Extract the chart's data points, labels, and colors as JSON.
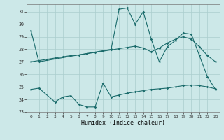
{
  "xlabel": "Humidex (Indice chaleur)",
  "background_color": "#cce8e8",
  "grid_color": "#aacece",
  "line_color": "#1a6b6b",
  "xlim": [
    -0.5,
    23.5
  ],
  "ylim": [
    23,
    31.6
  ],
  "xticks": [
    0,
    1,
    2,
    3,
    4,
    5,
    6,
    7,
    8,
    9,
    10,
    11,
    12,
    13,
    14,
    15,
    16,
    17,
    18,
    19,
    20,
    21,
    22,
    23
  ],
  "yticks": [
    23,
    24,
    25,
    26,
    27,
    28,
    29,
    30,
    31
  ],
  "line1_x": [
    0,
    1,
    10,
    11,
    12,
    13,
    14,
    15,
    16,
    17,
    18,
    19,
    20,
    21,
    22,
    23
  ],
  "line1_y": [
    29.5,
    27.0,
    28.0,
    31.2,
    31.3,
    30.0,
    31.0,
    28.8,
    27.0,
    28.2,
    28.7,
    29.3,
    29.2,
    27.5,
    25.8,
    24.8
  ],
  "line2_x": [
    0,
    1,
    3,
    4,
    5,
    6,
    7,
    8,
    9,
    10,
    11,
    12,
    13,
    14,
    15,
    16,
    17,
    18,
    19,
    20,
    21,
    22,
    23
  ],
  "line2_y": [
    24.8,
    24.9,
    23.8,
    24.2,
    24.3,
    23.6,
    23.4,
    23.4,
    25.3,
    24.2,
    24.35,
    24.5,
    24.6,
    24.7,
    24.8,
    24.85,
    24.9,
    25.0,
    25.1,
    25.15,
    25.1,
    25.0,
    24.85
  ],
  "line3_x": [
    0,
    1,
    2,
    3,
    4,
    5,
    6,
    7,
    8,
    9,
    10,
    11,
    12,
    13,
    14,
    15,
    16,
    17,
    18,
    19,
    20,
    21,
    22,
    23
  ],
  "line3_y": [
    27.0,
    27.1,
    27.2,
    27.3,
    27.4,
    27.5,
    27.55,
    27.65,
    27.75,
    27.85,
    27.95,
    28.05,
    28.15,
    28.25,
    28.1,
    27.8,
    28.1,
    28.5,
    28.8,
    29.0,
    28.8,
    28.2,
    27.5,
    27.0
  ]
}
